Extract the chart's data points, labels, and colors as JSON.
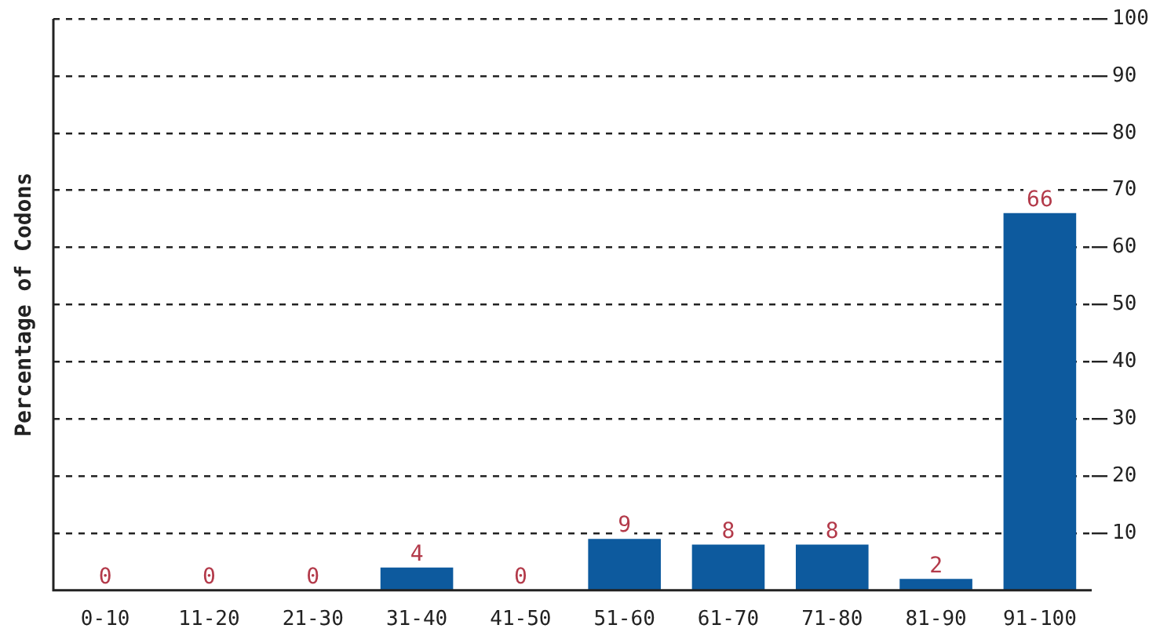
{
  "chart_data": {
    "type": "bar",
    "ylabel": "Percentage of Codons",
    "categories": [
      "0-10",
      "11-20",
      "21-30",
      "31-40",
      "41-50",
      "51-60",
      "61-70",
      "71-80",
      "81-90",
      "91-100"
    ],
    "values": [
      0,
      0,
      0,
      4,
      0,
      9,
      8,
      8,
      2,
      66
    ],
    "color": "#0d5a9e",
    "ylim": [
      0,
      100
    ],
    "yticks": [
      10,
      20,
      30,
      40,
      50,
      60,
      70,
      80,
      90,
      100
    ],
    "grid": "y",
    "line_style": "dashed",
    "data_labels": true
  }
}
